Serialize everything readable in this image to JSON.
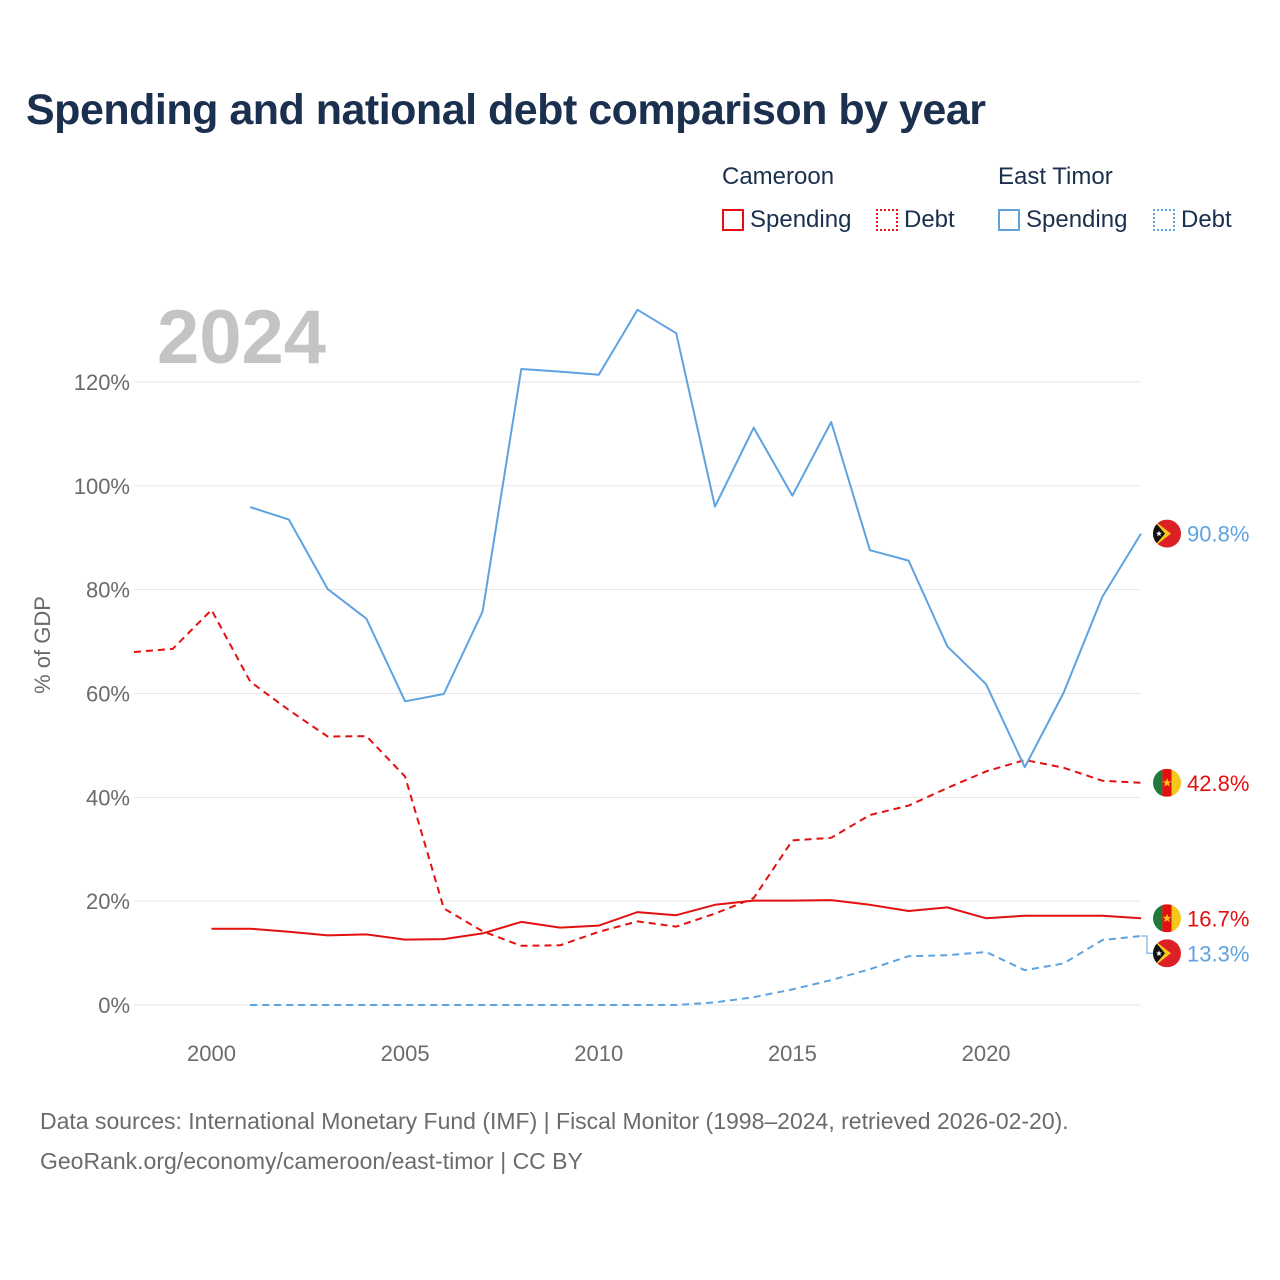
{
  "header": {
    "title": "Spending and national debt comparison by year"
  },
  "legend": {
    "groups": [
      {
        "name": "Cameroon",
        "color": "#e31010",
        "items": [
          {
            "label": "Spending",
            "style": "solid"
          },
          {
            "label": "Debt",
            "style": "dotted"
          }
        ]
      },
      {
        "name": "East Timor",
        "color": "#5ea3e0",
        "items": [
          {
            "label": "Spending",
            "style": "solid"
          },
          {
            "label": "Debt",
            "style": "dotted"
          }
        ]
      }
    ]
  },
  "chart_data": {
    "type": "line",
    "title": "Spending and national debt comparison by year",
    "year_label": "2024",
    "ylabel": "% of GDP",
    "xlabel": "",
    "xlim": [
      1998,
      2024
    ],
    "ylim": [
      0,
      130
    ],
    "x_ticks": [
      2000,
      2005,
      2010,
      2015,
      2020
    ],
    "y_ticks": [
      0,
      20,
      40,
      60,
      80,
      100,
      120
    ],
    "y_tick_labels": [
      "0%",
      "20%",
      "40%",
      "60%",
      "80%",
      "100%",
      "120%"
    ],
    "series": [
      {
        "name": "Cameroon Spending",
        "country": "Cameroon",
        "metric": "Spending",
        "color": "#e31010",
        "dash": "solid",
        "end_label": "16.7%",
        "points": [
          [
            2000,
            14.7
          ],
          [
            2001,
            14.7
          ],
          [
            2002,
            14.1
          ],
          [
            2003,
            13.4
          ],
          [
            2004,
            13.6
          ],
          [
            2005,
            12.6
          ],
          [
            2006,
            12.7
          ],
          [
            2007,
            13.8
          ],
          [
            2008,
            16.0
          ],
          [
            2009,
            14.9
          ],
          [
            2010,
            15.3
          ],
          [
            2011,
            17.9
          ],
          [
            2012,
            17.3
          ],
          [
            2013,
            19.3
          ],
          [
            2014,
            20.1
          ],
          [
            2015,
            20.1
          ],
          [
            2016,
            20.2
          ],
          [
            2017,
            19.3
          ],
          [
            2018,
            18.1
          ],
          [
            2019,
            18.8
          ],
          [
            2020,
            16.7
          ],
          [
            2021,
            17.2
          ],
          [
            2022,
            17.2
          ],
          [
            2023,
            17.2
          ],
          [
            2024,
            16.7
          ]
        ]
      },
      {
        "name": "Cameroon Debt",
        "country": "Cameroon",
        "metric": "Debt",
        "color": "#e31010",
        "dash": "dashed",
        "end_label": "42.8%",
        "points": [
          [
            1998,
            68.0
          ],
          [
            1999,
            68.6
          ],
          [
            2000,
            76.1
          ],
          [
            2001,
            62.3
          ],
          [
            2002,
            56.8
          ],
          [
            2003,
            51.7
          ],
          [
            2004,
            51.8
          ],
          [
            2005,
            44.0
          ],
          [
            2006,
            18.6
          ],
          [
            2007,
            14.2
          ],
          [
            2008,
            11.4
          ],
          [
            2009,
            11.5
          ],
          [
            2010,
            14.1
          ],
          [
            2011,
            16.1
          ],
          [
            2012,
            15.1
          ],
          [
            2013,
            17.6
          ],
          [
            2014,
            20.6
          ],
          [
            2015,
            31.7
          ],
          [
            2016,
            32.2
          ],
          [
            2017,
            36.6
          ],
          [
            2018,
            38.4
          ],
          [
            2019,
            41.8
          ],
          [
            2020,
            45.0
          ],
          [
            2021,
            47.2
          ],
          [
            2022,
            45.7
          ],
          [
            2023,
            43.2
          ],
          [
            2024,
            42.8
          ]
        ]
      },
      {
        "name": "East Timor Spending",
        "country": "East Timor",
        "metric": "Spending",
        "color": "#5ea3e0",
        "dash": "solid",
        "end_label": "90.8%",
        "points": [
          [
            2001,
            95.9
          ],
          [
            2002,
            93.5
          ],
          [
            2003,
            80.1
          ],
          [
            2004,
            74.4
          ],
          [
            2005,
            58.5
          ],
          [
            2006,
            59.9
          ],
          [
            2007,
            75.8
          ],
          [
            2008,
            122.5
          ],
          [
            2009,
            122.0
          ],
          [
            2010,
            121.4
          ],
          [
            2011,
            133.9
          ],
          [
            2012,
            129.4
          ],
          [
            2013,
            96.0
          ],
          [
            2014,
            111.2
          ],
          [
            2015,
            98.1
          ],
          [
            2016,
            112.3
          ],
          [
            2017,
            87.6
          ],
          [
            2018,
            85.6
          ],
          [
            2019,
            69.1
          ],
          [
            2020,
            61.8
          ],
          [
            2021,
            45.8
          ],
          [
            2022,
            60.1
          ],
          [
            2023,
            78.6
          ],
          [
            2024,
            90.8
          ]
        ]
      },
      {
        "name": "East Timor Debt",
        "country": "East Timor",
        "metric": "Debt",
        "color": "#5ea3e0",
        "dash": "dashed",
        "end_label": "13.3%",
        "points": [
          [
            2001,
            0.0
          ],
          [
            2002,
            0.0
          ],
          [
            2003,
            0.0
          ],
          [
            2004,
            0.0
          ],
          [
            2005,
            0.0
          ],
          [
            2006,
            0.0
          ],
          [
            2007,
            0.0
          ],
          [
            2008,
            0.0
          ],
          [
            2009,
            0.0
          ],
          [
            2010,
            0.0
          ],
          [
            2011,
            0.0
          ],
          [
            2012,
            0.0
          ],
          [
            2013,
            0.5
          ],
          [
            2014,
            1.5
          ],
          [
            2015,
            3.0
          ],
          [
            2016,
            4.8
          ],
          [
            2017,
            6.9
          ],
          [
            2018,
            9.4
          ],
          [
            2019,
            9.6
          ],
          [
            2020,
            10.2
          ],
          [
            2021,
            6.7
          ],
          [
            2022,
            8.0
          ],
          [
            2023,
            12.5
          ],
          [
            2024,
            13.3
          ]
        ]
      }
    ]
  },
  "footer": {
    "source_line": "Data sources: International Monetary Fund (IMF) | Fiscal Monitor (1998–2024, retrieved 2026-02-20).",
    "credit_line": "GeoRank.org/economy/cameroon/east-timor | CC BY"
  }
}
